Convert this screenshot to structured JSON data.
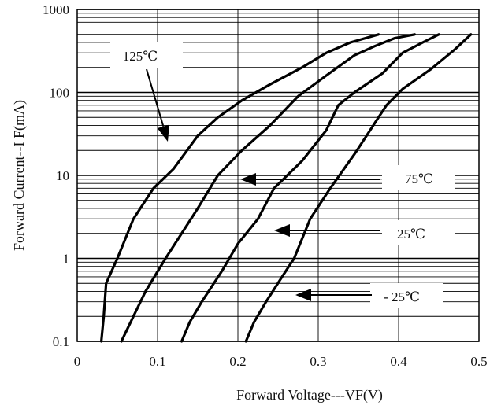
{
  "chart_data": {
    "type": "line",
    "title": "",
    "xlabel": "Forward Voltage---VF(V)",
    "ylabel": "Forward Current--I F(mA)",
    "xlim": [
      0,
      0.5
    ],
    "ylim": [
      0.1,
      1000
    ],
    "yscale": "log",
    "grid": true,
    "x_ticks": [
      "0",
      "0.1",
      "0.2",
      "0.3",
      "0.4",
      "0.5"
    ],
    "y_ticks": [
      "0.1",
      "1",
      "10",
      "100",
      "1000"
    ],
    "series": [
      {
        "name": "125℃",
        "x": [
          0.03,
          0.033,
          0.036,
          0.05,
          0.07,
          0.095,
          0.12,
          0.15,
          0.175,
          0.205,
          0.24,
          0.28,
          0.31,
          0.34,
          0.375
        ],
        "y": [
          0.1,
          0.2,
          0.5,
          1,
          3,
          7,
          12,
          30,
          50,
          80,
          125,
          200,
          300,
          400,
          500
        ]
      },
      {
        "name": "75℃",
        "x": [
          0.055,
          0.07,
          0.085,
          0.11,
          0.13,
          0.15,
          0.175,
          0.205,
          0.24,
          0.275,
          0.31,
          0.345,
          0.37,
          0.395,
          0.42
        ],
        "y": [
          0.1,
          0.2,
          0.4,
          1,
          2,
          4,
          10,
          20,
          40,
          90,
          160,
          280,
          360,
          450,
          500
        ]
      },
      {
        "name": "25℃",
        "x": [
          0.13,
          0.14,
          0.155,
          0.18,
          0.2,
          0.225,
          0.245,
          0.28,
          0.31,
          0.325,
          0.345,
          0.38,
          0.405,
          0.43,
          0.45
        ],
        "y": [
          0.1,
          0.17,
          0.3,
          0.7,
          1.5,
          3,
          7,
          15,
          35,
          70,
          100,
          170,
          300,
          400,
          500
        ]
      },
      {
        "name": "- 25℃",
        "x": [
          0.21,
          0.22,
          0.235,
          0.255,
          0.27,
          0.29,
          0.315,
          0.345,
          0.36,
          0.375,
          0.385,
          0.405,
          0.44,
          0.47,
          0.49
        ],
        "y": [
          0.1,
          0.17,
          0.3,
          0.6,
          1,
          3,
          7,
          18,
          30,
          50,
          70,
          110,
          190,
          330,
          500
        ]
      }
    ]
  }
}
